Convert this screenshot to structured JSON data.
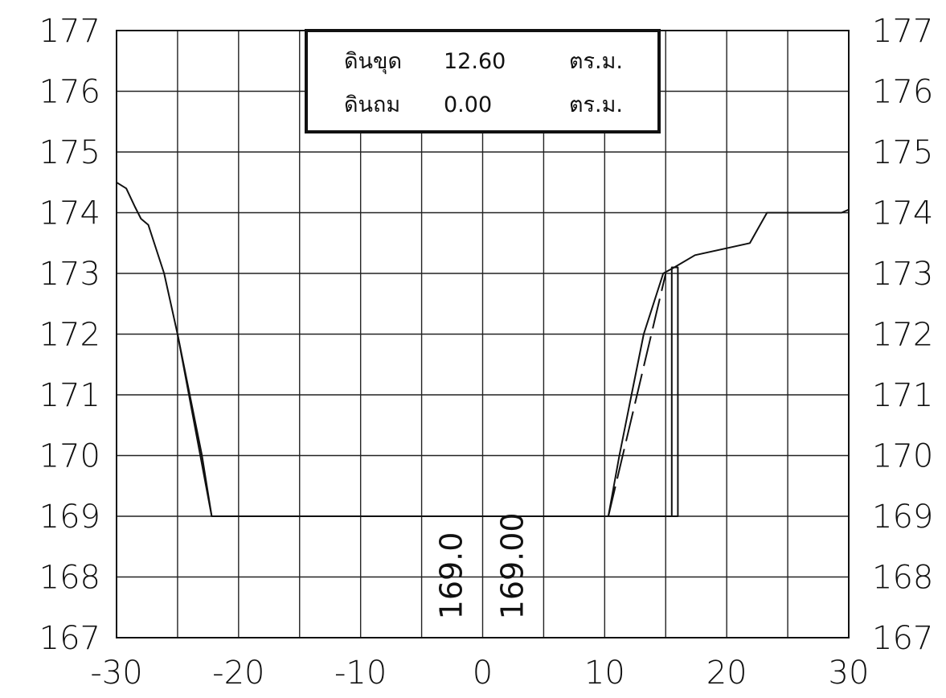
{
  "chart_data": {
    "type": "line",
    "title": "",
    "xlabel": "",
    "ylabel": "",
    "xlim": [
      -30,
      30
    ],
    "ylim": [
      167,
      177
    ],
    "x_ticks": [
      "-30",
      "-20",
      "-10",
      "0",
      "10",
      "20",
      "30"
    ],
    "y_ticks": [
      "167",
      "168",
      "169",
      "170",
      "171",
      "172",
      "173",
      "174",
      "175",
      "176",
      "177"
    ],
    "grid": true,
    "grid_step_x": 5,
    "grid_step_y": 1,
    "series": [
      {
        "role": "ground",
        "points": [
          [
            -30,
            174.5
          ],
          [
            -29.2,
            174.4
          ],
          [
            -28.5,
            174.1
          ],
          [
            -28,
            173.9
          ],
          [
            -27.4,
            173.8
          ],
          [
            -26.1,
            173.0
          ],
          [
            -25,
            172.0
          ],
          [
            -24,
            171.0
          ],
          [
            -23,
            170.0
          ],
          [
            -22.2,
            169.0
          ],
          [
            -19.5,
            169.0
          ],
          [
            -12,
            169.0
          ],
          [
            10.3,
            169.0
          ],
          [
            11.2,
            170.0
          ],
          [
            12.2,
            171.0
          ],
          [
            13.2,
            172.0
          ],
          [
            14.8,
            173.0
          ],
          [
            15.7,
            173.1
          ],
          [
            17.4,
            173.3
          ],
          [
            21.9,
            173.5
          ],
          [
            22.6,
            173.75
          ],
          [
            23.3,
            174.0
          ],
          [
            29.4,
            174.0
          ],
          [
            30,
            174.05
          ]
        ]
      },
      {
        "role": "design",
        "points": [
          [
            -25,
            172.0
          ],
          [
            -22.2,
            169.0
          ],
          [
            -20,
            169.0
          ],
          [
            16,
            169.0
          ],
          [
            16,
            173.1
          ],
          [
            15.5,
            173.1
          ],
          [
            15.5,
            169.0
          ]
        ]
      },
      {
        "role": "design-slope",
        "points": [
          [
            10.3,
            169.0
          ],
          [
            15.0,
            173.0
          ]
        ]
      }
    ],
    "vertical_labels": [
      {
        "x": -2.5,
        "text": "169.0"
      },
      {
        "x": 2.5,
        "text": "169.00"
      }
    ],
    "legend": {
      "position": "top-center",
      "rows": [
        {
          "label": "ดินขุด",
          "value": "12.60",
          "unit": "ตร.ม."
        },
        {
          "label": "ดินถม",
          "value": "0.00",
          "unit": "ตร.ม."
        }
      ]
    },
    "colors": {
      "line": "#111111",
      "grid": "#222222",
      "background": "#ffffff"
    }
  }
}
